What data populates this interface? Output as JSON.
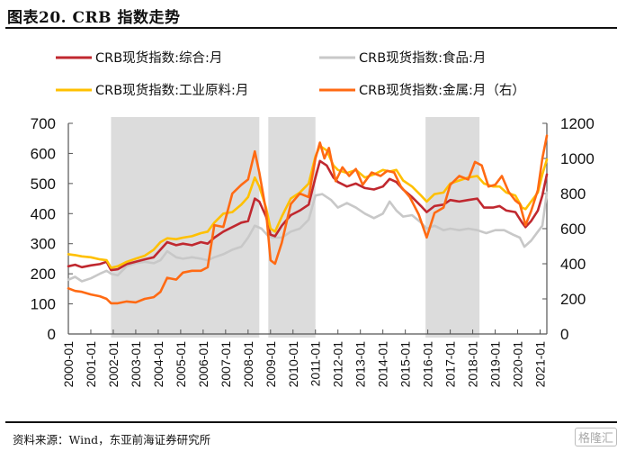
{
  "header": {
    "title": "图表20. CRB 指数走势"
  },
  "footer": {
    "source": "资料来源：Wind，东亚前海证券研究所",
    "watermark": "格隆汇"
  },
  "chart_data": {
    "type": "line",
    "title": "图表20. CRB 指数走势",
    "xlabel": "",
    "ylabel_left": "",
    "ylabel_right": "",
    "x_range": [
      2000.0,
      2021.3
    ],
    "ylim_left": [
      0,
      700
    ],
    "ylim_right": [
      0,
      1200
    ],
    "yticks_left": [
      0,
      100,
      200,
      300,
      400,
      500,
      600,
      700
    ],
    "yticks_right": [
      0,
      200,
      400,
      600,
      800,
      1000,
      1200
    ],
    "xtick_labels": [
      "2000-01",
      "2001-01",
      "2002-01",
      "2003-01",
      "2004-01",
      "2005-01",
      "2006-01",
      "2007-01",
      "2008-01",
      "2009-01",
      "2010-01",
      "2011-01",
      "2012-01",
      "2013-01",
      "2014-01",
      "2015-01",
      "2016-01",
      "2017-01",
      "2018-01",
      "2019-01",
      "2020-01",
      "2021-01"
    ],
    "grid": false,
    "legend_position": "top",
    "shaded_periods": [
      [
        2001.9,
        2008.5
      ],
      [
        2008.9,
        2011.0
      ],
      [
        2015.9,
        2018.3
      ]
    ],
    "series": [
      {
        "name": "CRB现货指数:综合:月",
        "color": "#C0282F",
        "axis": "left",
        "points": [
          [
            2000.0,
            225
          ],
          [
            2000.3,
            230
          ],
          [
            2000.6,
            222
          ],
          [
            2001.0,
            228
          ],
          [
            2001.4,
            232
          ],
          [
            2001.7,
            240
          ],
          [
            2001.9,
            212
          ],
          [
            2002.2,
            215
          ],
          [
            2002.6,
            232
          ],
          [
            2003.0,
            240
          ],
          [
            2003.4,
            248
          ],
          [
            2003.8,
            255
          ],
          [
            2004.1,
            280
          ],
          [
            2004.4,
            305
          ],
          [
            2004.8,
            295
          ],
          [
            2005.1,
            300
          ],
          [
            2005.5,
            295
          ],
          [
            2005.9,
            305
          ],
          [
            2006.2,
            300
          ],
          [
            2006.5,
            320
          ],
          [
            2006.9,
            340
          ],
          [
            2007.3,
            355
          ],
          [
            2007.7,
            370
          ],
          [
            2008.0,
            375
          ],
          [
            2008.3,
            450
          ],
          [
            2008.5,
            440
          ],
          [
            2008.8,
            390
          ],
          [
            2009.0,
            330
          ],
          [
            2009.2,
            325
          ],
          [
            2009.5,
            360
          ],
          [
            2009.9,
            395
          ],
          [
            2010.3,
            410
          ],
          [
            2010.7,
            430
          ],
          [
            2011.0,
            520
          ],
          [
            2011.2,
            575
          ],
          [
            2011.5,
            560
          ],
          [
            2011.8,
            520
          ],
          [
            2012.0,
            505
          ],
          [
            2012.4,
            490
          ],
          [
            2012.8,
            500
          ],
          [
            2013.2,
            485
          ],
          [
            2013.6,
            480
          ],
          [
            2014.0,
            490
          ],
          [
            2014.3,
            515
          ],
          [
            2014.6,
            505
          ],
          [
            2014.9,
            480
          ],
          [
            2015.3,
            455
          ],
          [
            2015.7,
            425
          ],
          [
            2015.95,
            405
          ],
          [
            2016.3,
            425
          ],
          [
            2016.7,
            430
          ],
          [
            2017.0,
            445
          ],
          [
            2017.4,
            440
          ],
          [
            2017.8,
            445
          ],
          [
            2018.2,
            450
          ],
          [
            2018.5,
            420
          ],
          [
            2018.9,
            420
          ],
          [
            2019.2,
            425
          ],
          [
            2019.5,
            410
          ],
          [
            2019.9,
            405
          ],
          [
            2020.2,
            370
          ],
          [
            2020.35,
            355
          ],
          [
            2020.6,
            375
          ],
          [
            2020.9,
            410
          ],
          [
            2021.1,
            460
          ],
          [
            2021.3,
            530
          ]
        ]
      },
      {
        "name": "CRB现货指数:食品:月",
        "color": "#C8C8C8",
        "axis": "left",
        "points": [
          [
            2000.0,
            180
          ],
          [
            2000.3,
            190
          ],
          [
            2000.6,
            175
          ],
          [
            2001.0,
            185
          ],
          [
            2001.4,
            200
          ],
          [
            2001.7,
            210
          ],
          [
            2001.9,
            200
          ],
          [
            2002.2,
            195
          ],
          [
            2002.6,
            225
          ],
          [
            2003.0,
            235
          ],
          [
            2003.4,
            240
          ],
          [
            2003.8,
            235
          ],
          [
            2004.1,
            245
          ],
          [
            2004.4,
            275
          ],
          [
            2004.8,
            255
          ],
          [
            2005.1,
            250
          ],
          [
            2005.5,
            255
          ],
          [
            2005.9,
            250
          ],
          [
            2006.2,
            245
          ],
          [
            2006.5,
            255
          ],
          [
            2006.9,
            265
          ],
          [
            2007.3,
            280
          ],
          [
            2007.7,
            290
          ],
          [
            2008.0,
            320
          ],
          [
            2008.3,
            360
          ],
          [
            2008.6,
            350
          ],
          [
            2008.9,
            325
          ],
          [
            2009.1,
            320
          ],
          [
            2009.5,
            320
          ],
          [
            2009.9,
            340
          ],
          [
            2010.3,
            350
          ],
          [
            2010.7,
            380
          ],
          [
            2011.0,
            460
          ],
          [
            2011.3,
            465
          ],
          [
            2011.7,
            445
          ],
          [
            2012.0,
            420
          ],
          [
            2012.4,
            435
          ],
          [
            2012.8,
            420
          ],
          [
            2013.2,
            400
          ],
          [
            2013.6,
            385
          ],
          [
            2014.0,
            400
          ],
          [
            2014.3,
            440
          ],
          [
            2014.6,
            410
          ],
          [
            2014.9,
            390
          ],
          [
            2015.3,
            395
          ],
          [
            2015.7,
            370
          ],
          [
            2015.95,
            350
          ],
          [
            2016.3,
            360
          ],
          [
            2016.7,
            345
          ],
          [
            2017.0,
            350
          ],
          [
            2017.4,
            345
          ],
          [
            2017.8,
            350
          ],
          [
            2018.2,
            345
          ],
          [
            2018.6,
            335
          ],
          [
            2019.0,
            345
          ],
          [
            2019.4,
            345
          ],
          [
            2019.8,
            330
          ],
          [
            2020.1,
            320
          ],
          [
            2020.3,
            290
          ],
          [
            2020.6,
            310
          ],
          [
            2020.9,
            340
          ],
          [
            2021.1,
            360
          ],
          [
            2021.3,
            470
          ]
        ]
      },
      {
        "name": "CRB现货指数:工业原料:月",
        "color": "#FFC000",
        "axis": "left",
        "points": [
          [
            2000.0,
            265
          ],
          [
            2000.3,
            262
          ],
          [
            2000.6,
            258
          ],
          [
            2001.0,
            255
          ],
          [
            2001.4,
            248
          ],
          [
            2001.7,
            245
          ],
          [
            2001.9,
            220
          ],
          [
            2002.2,
            225
          ],
          [
            2002.6,
            240
          ],
          [
            2003.0,
            250
          ],
          [
            2003.4,
            260
          ],
          [
            2003.8,
            280
          ],
          [
            2004.1,
            305
          ],
          [
            2004.4,
            318
          ],
          [
            2004.8,
            315
          ],
          [
            2005.1,
            320
          ],
          [
            2005.5,
            325
          ],
          [
            2005.9,
            335
          ],
          [
            2006.2,
            340
          ],
          [
            2006.5,
            370
          ],
          [
            2006.9,
            400
          ],
          [
            2007.3,
            405
          ],
          [
            2007.7,
            430
          ],
          [
            2008.0,
            455
          ],
          [
            2008.3,
            520
          ],
          [
            2008.5,
            490
          ],
          [
            2008.8,
            420
          ],
          [
            2009.0,
            350
          ],
          [
            2009.2,
            340
          ],
          [
            2009.5,
            390
          ],
          [
            2009.9,
            450
          ],
          [
            2010.3,
            470
          ],
          [
            2010.7,
            500
          ],
          [
            2011.0,
            590
          ],
          [
            2011.2,
            625
          ],
          [
            2011.5,
            610
          ],
          [
            2011.8,
            560
          ],
          [
            2012.0,
            545
          ],
          [
            2012.4,
            535
          ],
          [
            2012.8,
            545
          ],
          [
            2013.2,
            520
          ],
          [
            2013.6,
            530
          ],
          [
            2014.0,
            545
          ],
          [
            2014.3,
            540
          ],
          [
            2014.6,
            545
          ],
          [
            2014.9,
            510
          ],
          [
            2015.3,
            490
          ],
          [
            2015.7,
            460
          ],
          [
            2015.95,
            440
          ],
          [
            2016.3,
            465
          ],
          [
            2016.7,
            470
          ],
          [
            2017.0,
            500
          ],
          [
            2017.4,
            510
          ],
          [
            2017.8,
            520
          ],
          [
            2018.2,
            525
          ],
          [
            2018.5,
            500
          ],
          [
            2018.9,
            490
          ],
          [
            2019.2,
            490
          ],
          [
            2019.5,
            470
          ],
          [
            2019.9,
            460
          ],
          [
            2020.2,
            420
          ],
          [
            2020.35,
            415
          ],
          [
            2020.6,
            440
          ],
          [
            2020.9,
            470
          ],
          [
            2021.1,
            530
          ],
          [
            2021.3,
            580
          ]
        ]
      },
      {
        "name": "CRB现货指数:金属:月（右）",
        "color": "#FF6A13",
        "axis": "right",
        "points": [
          [
            2000.0,
            260
          ],
          [
            2000.3,
            245
          ],
          [
            2000.6,
            240
          ],
          [
            2001.0,
            225
          ],
          [
            2001.4,
            215
          ],
          [
            2001.7,
            200
          ],
          [
            2001.9,
            175
          ],
          [
            2002.2,
            175
          ],
          [
            2002.6,
            185
          ],
          [
            2003.0,
            180
          ],
          [
            2003.4,
            200
          ],
          [
            2003.8,
            210
          ],
          [
            2004.1,
            240
          ],
          [
            2004.4,
            320
          ],
          [
            2004.8,
            310
          ],
          [
            2005.1,
            350
          ],
          [
            2005.5,
            360
          ],
          [
            2005.9,
            360
          ],
          [
            2006.2,
            380
          ],
          [
            2006.5,
            620
          ],
          [
            2006.9,
            610
          ],
          [
            2007.3,
            800
          ],
          [
            2007.7,
            850
          ],
          [
            2008.0,
            880
          ],
          [
            2008.3,
            1040
          ],
          [
            2008.5,
            920
          ],
          [
            2008.8,
            700
          ],
          [
            2009.0,
            420
          ],
          [
            2009.2,
            400
          ],
          [
            2009.5,
            520
          ],
          [
            2009.9,
            740
          ],
          [
            2010.3,
            800
          ],
          [
            2010.7,
            780
          ],
          [
            2011.0,
            1000
          ],
          [
            2011.2,
            1090
          ],
          [
            2011.4,
            1000
          ],
          [
            2011.6,
            1060
          ],
          [
            2011.9,
            870
          ],
          [
            2012.2,
            950
          ],
          [
            2012.5,
            900
          ],
          [
            2012.8,
            940
          ],
          [
            2013.1,
            850
          ],
          [
            2013.5,
            920
          ],
          [
            2013.9,
            900
          ],
          [
            2014.2,
            930
          ],
          [
            2014.5,
            920
          ],
          [
            2014.8,
            840
          ],
          [
            2015.2,
            780
          ],
          [
            2015.6,
            680
          ],
          [
            2015.95,
            550
          ],
          [
            2016.3,
            690
          ],
          [
            2016.7,
            720
          ],
          [
            2017.0,
            850
          ],
          [
            2017.4,
            900
          ],
          [
            2017.8,
            880
          ],
          [
            2018.1,
            980
          ],
          [
            2018.4,
            960
          ],
          [
            2018.7,
            840
          ],
          [
            2019.0,
            850
          ],
          [
            2019.3,
            900
          ],
          [
            2019.6,
            810
          ],
          [
            2019.9,
            760
          ],
          [
            2020.1,
            740
          ],
          [
            2020.35,
            620
          ],
          [
            2020.6,
            700
          ],
          [
            2020.9,
            820
          ],
          [
            2021.1,
            1000
          ],
          [
            2021.3,
            1130
          ]
        ]
      }
    ]
  }
}
